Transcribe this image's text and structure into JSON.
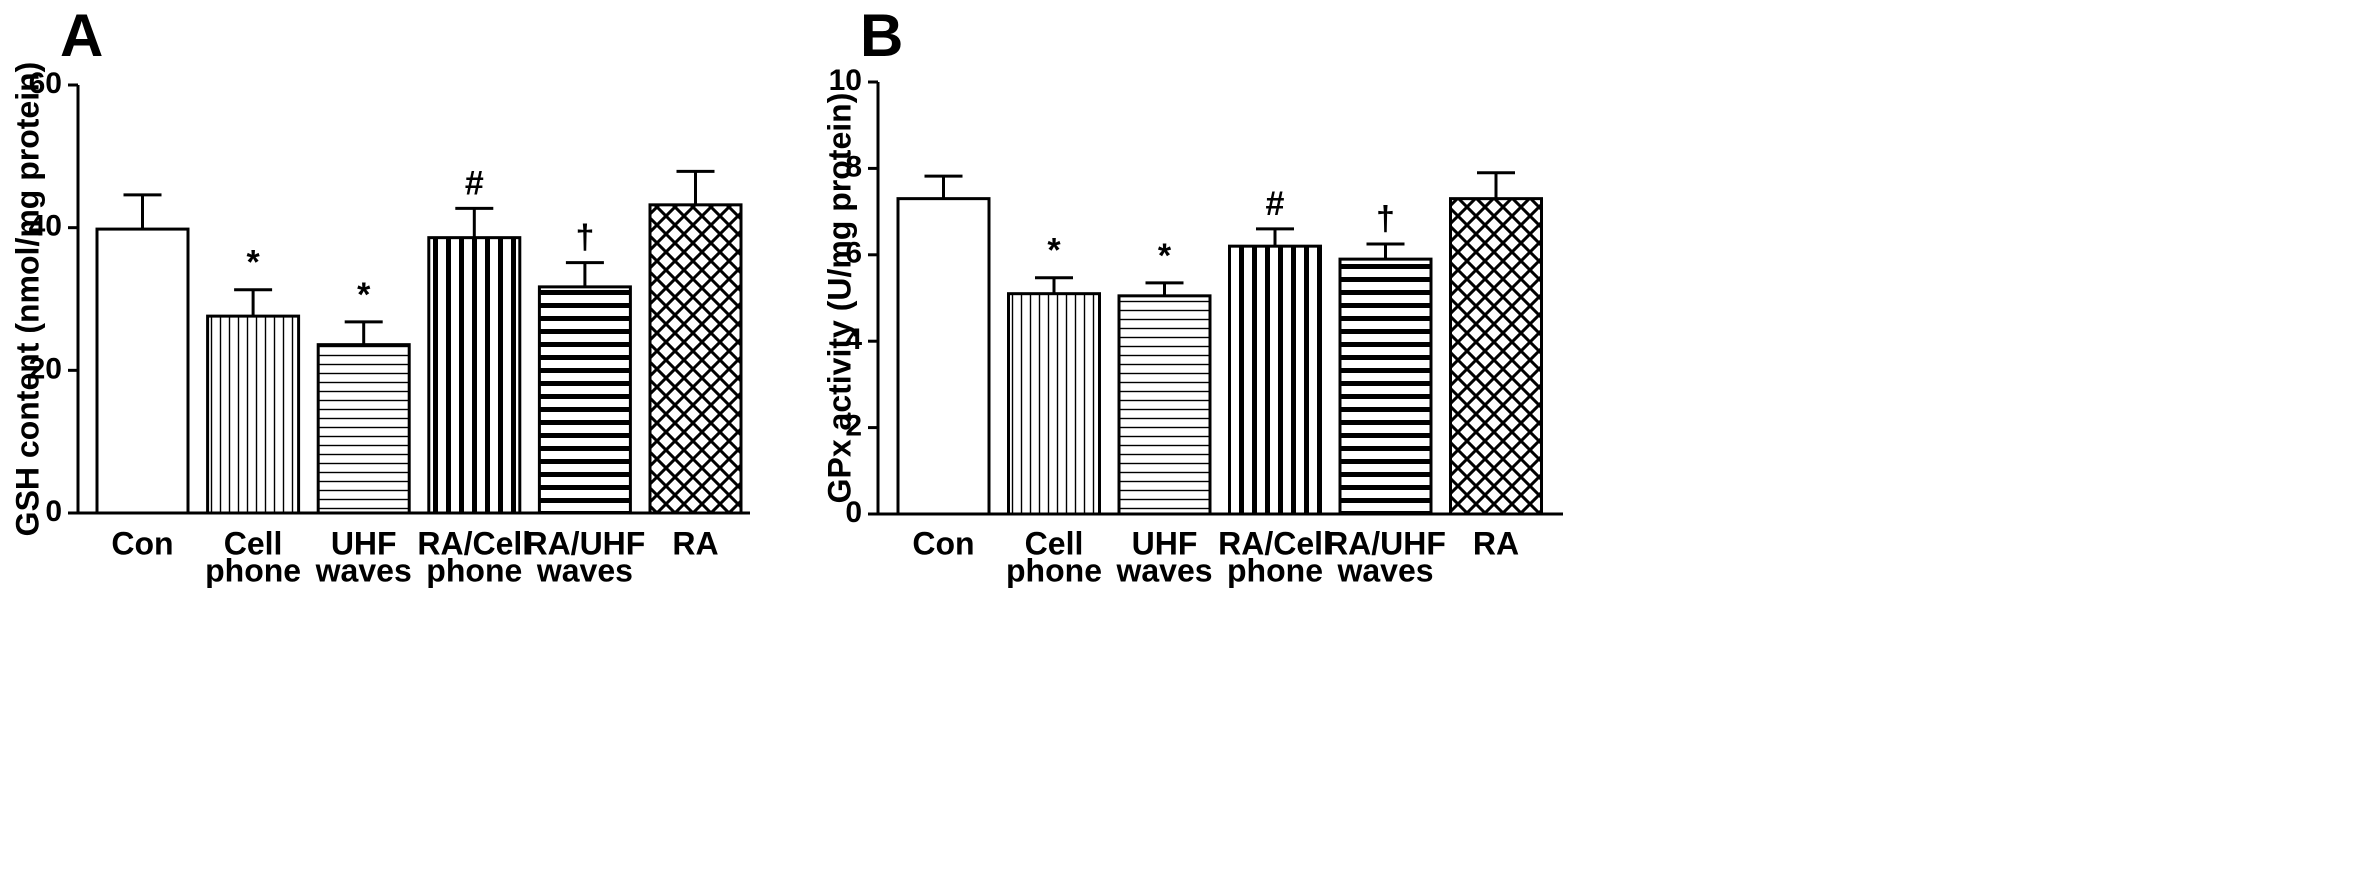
{
  "chart_data": [
    {
      "type": "bar",
      "panel_label": "A",
      "ylabel": "GSH content (nmol/mg protein)",
      "xlabel": "",
      "ylim": [
        0,
        60
      ],
      "yticks": [
        "0",
        "20",
        "40",
        "60"
      ],
      "categories": [
        [
          "Con"
        ],
        [
          "Cell",
          "phone"
        ],
        [
          "UHF",
          "waves"
        ],
        [
          "RA/Cell",
          "phone"
        ],
        [
          "RA/UHF",
          "waves"
        ],
        [
          "RA"
        ]
      ],
      "values": [
        39.8,
        27.6,
        23.6,
        38.6,
        31.7,
        43.2
      ],
      "errors": [
        4.8,
        3.7,
        3.2,
        4.1,
        3.4,
        4.7
      ],
      "annotations": [
        "",
        "*",
        "*",
        "#",
        "†",
        ""
      ],
      "patterns": [
        "none",
        "vertical-thin",
        "horizontal-thin",
        "vertical-thick",
        "horizontal-thick",
        "crosshatch"
      ],
      "grid": false
    },
    {
      "type": "bar",
      "panel_label": "B",
      "ylabel": "GPx activity (U/mg protein)",
      "xlabel": "",
      "ylim": [
        0,
        10
      ],
      "yticks": [
        "0",
        "2",
        "4",
        "6",
        "8",
        "10"
      ],
      "categories": [
        [
          "Con"
        ],
        [
          "Cell",
          "phone"
        ],
        [
          "UHF",
          "waves"
        ],
        [
          "RA/Cell",
          "phone"
        ],
        [
          "RA/UHF",
          "waves"
        ],
        [
          "RA"
        ]
      ],
      "values": [
        7.3,
        5.1,
        5.05,
        6.2,
        5.9,
        7.3
      ],
      "errors": [
        0.52,
        0.37,
        0.3,
        0.4,
        0.35,
        0.6
      ],
      "annotations": [
        "",
        "*",
        "*",
        "#",
        "†",
        ""
      ],
      "patterns": [
        "none",
        "vertical-thin",
        "horizontal-thin",
        "vertical-thick",
        "horizontal-thick",
        "crosshatch"
      ],
      "grid": false
    }
  ]
}
